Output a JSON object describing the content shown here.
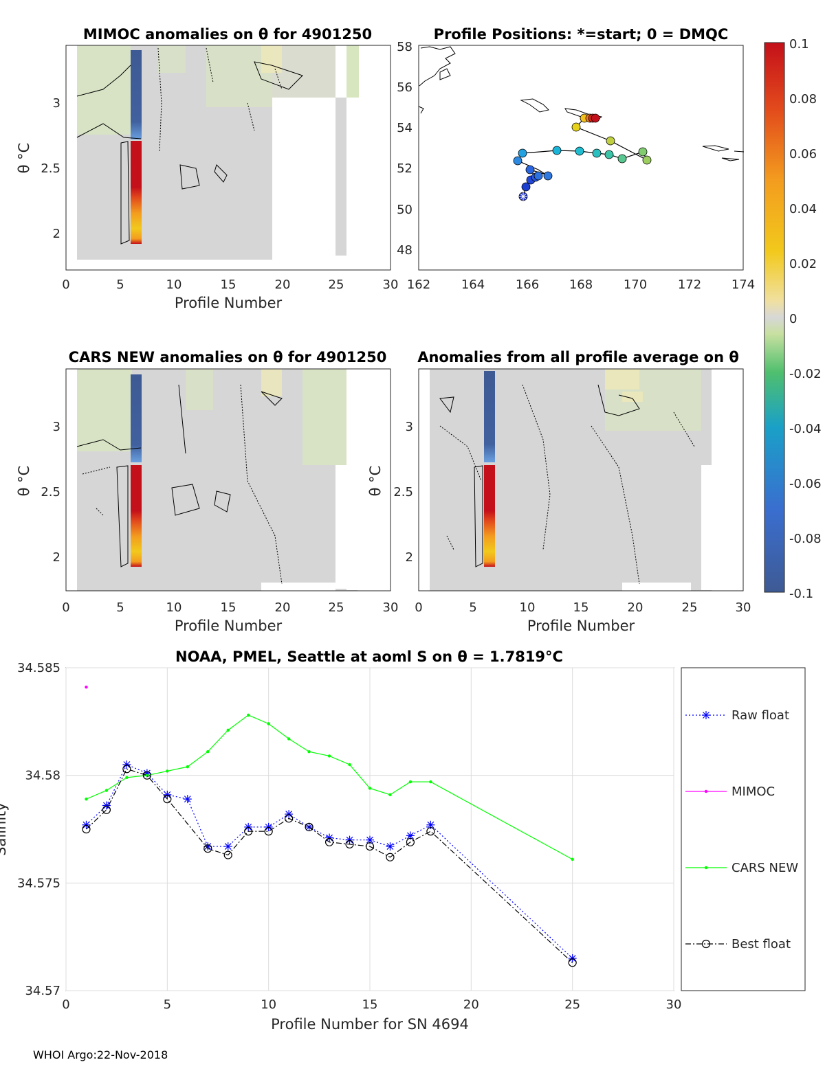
{
  "footer": "WHOI Argo:22-Nov-2018",
  "colorbar": {
    "ticks": [
      "0.1",
      "0.08",
      "0.06",
      "0.04",
      "0.02",
      "0",
      "-0.02",
      "-0.04",
      "-0.06",
      "-0.08",
      "-0.1"
    ]
  },
  "panels": {
    "mimoc": {
      "title": "MIMOC anomalies on θ  for 4901250",
      "xlabel": "Profile Number",
      "ylabel": "θ °C",
      "xticks": [
        "0",
        "5",
        "10",
        "15",
        "20",
        "25",
        "30"
      ],
      "yticks": [
        "3",
        "2.5",
        "2"
      ]
    },
    "positions": {
      "title": "Profile Positions: *=start; 0 = DMQC",
      "xticks": [
        "162",
        "164",
        "166",
        "168",
        "170",
        "172",
        "174"
      ],
      "yticks": [
        "58",
        "56",
        "54",
        "52",
        "50",
        "48"
      ]
    },
    "cars": {
      "title": "CARS NEW anomalies on θ for 4901250",
      "xlabel": "Profile Number",
      "ylabel": "θ °C",
      "xticks": [
        "0",
        "5",
        "10",
        "15",
        "20",
        "25",
        "30"
      ],
      "yticks": [
        "3",
        "2.5",
        "2"
      ]
    },
    "allavg": {
      "title": "Anomalies from all profile average on θ",
      "xlabel": "Profile Number",
      "ylabel": "θ °C",
      "xticks": [
        "0",
        "5",
        "10",
        "15",
        "20",
        "25",
        "30"
      ],
      "yticks": [
        "3",
        "2.5",
        "2"
      ]
    }
  },
  "chart_data": {
    "type": "line",
    "title": "NOAA, PMEL, Seattle at aoml S on θ = 1.7819°C",
    "xlabel": "Profile Number for SN 4694",
    "ylabel": "Salinity",
    "xlim": [
      0,
      30
    ],
    "ylim": [
      34.57,
      34.585
    ],
    "xticks": [
      "0",
      "5",
      "10",
      "15",
      "20",
      "25",
      "30"
    ],
    "yticks": [
      "34.585",
      "34.58",
      "34.575",
      "34.57"
    ],
    "legend_position": "right",
    "series": [
      {
        "name": "Raw float",
        "color": "#0000ff",
        "marker": "star",
        "x": [
          1,
          2,
          3,
          4,
          5,
          6,
          7,
          8,
          9,
          10,
          11,
          12,
          13,
          14,
          15,
          16,
          17,
          18,
          25
        ],
        "values": [
          34.5777,
          34.5786,
          34.5805,
          34.5801,
          34.5791,
          34.5789,
          34.5767,
          34.5767,
          34.5776,
          34.5776,
          34.5782,
          34.5776,
          34.5771,
          34.577,
          34.577,
          34.5767,
          34.5772,
          34.5777,
          34.5715
        ]
      },
      {
        "name": "MIMOC",
        "color": "#ff00ff",
        "marker": "dot",
        "x": [
          1
        ],
        "values": [
          34.5841
        ]
      },
      {
        "name": "CARS NEW",
        "color": "#00ff00",
        "marker": "dot",
        "x": [
          1,
          2,
          3,
          4,
          5,
          6,
          7,
          8,
          9,
          10,
          11,
          12,
          13,
          14,
          15,
          16,
          17,
          18,
          25
        ],
        "values": [
          34.5789,
          34.5793,
          34.5799,
          34.58,
          34.5802,
          34.5804,
          34.5811,
          34.5821,
          34.5828,
          34.5824,
          34.5817,
          34.5811,
          34.5809,
          34.5805,
          34.5794,
          34.5791,
          34.5797,
          34.5797,
          34.5761
        ]
      },
      {
        "name": "Best float",
        "color": "#000000",
        "marker": "circle",
        "x": [
          1,
          2,
          3,
          4,
          5,
          6,
          7,
          8,
          9,
          10,
          11,
          12,
          13,
          14,
          15,
          16,
          17,
          18,
          25
        ],
        "values": [
          34.5775,
          34.5784,
          34.5803,
          34.58,
          34.5789,
          null,
          34.5766,
          34.5763,
          34.5774,
          34.5774,
          34.578,
          34.5776,
          34.5769,
          34.5768,
          34.5767,
          34.5762,
          34.5769,
          34.5774,
          34.5713
        ]
      }
    ]
  }
}
